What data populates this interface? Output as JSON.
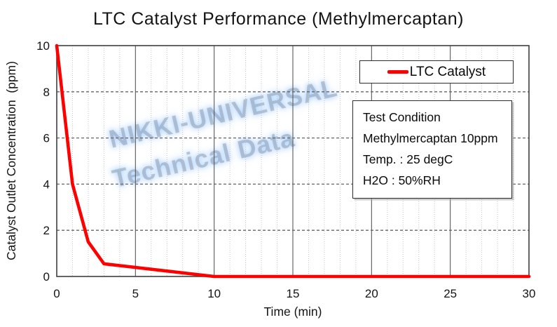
{
  "title": "LTC Catalyst Performance (Methylmercaptan)",
  "watermark": {
    "line1": "NIKKI-UNIVERSAL",
    "line2": "Technical Data"
  },
  "legend": {
    "label": "LTC Catalyst"
  },
  "test_condition": {
    "lines": [
      "Test Condition",
      "Methylmercaptan 10ppm",
      "Temp. : 25 degC",
      "H2O : 50%RH"
    ]
  },
  "chart_data": {
    "type": "line",
    "title": "LTC Catalyst Performance (Methylmercaptan)",
    "xlabel": "Time (min)",
    "ylabel": "Catalyst Outlet Concentration  (ppm)",
    "xlim": [
      0,
      30
    ],
    "ylim": [
      0,
      10
    ],
    "xticks": [
      0,
      5,
      10,
      15,
      20,
      25,
      30
    ],
    "yticks": [
      0,
      2,
      4,
      6,
      8,
      10
    ],
    "x_minor_step": 1,
    "grid": {
      "horizontal": "dashed",
      "vertical_major": "solid",
      "vertical_minor": "dotted"
    },
    "legend_position": "top-right-inside",
    "colors": {
      "line": "#ff0000",
      "h_grid": "#666666",
      "v_major_grid": "#595959",
      "v_minor_grid": "#c4c4c4",
      "border": "#3f3f3f",
      "tick_text": "#141414"
    },
    "series": [
      {
        "name": "LTC Catalyst",
        "color": "#ff0000",
        "points": [
          [
            0,
            10
          ],
          [
            1,
            4
          ],
          [
            2,
            1.5
          ],
          [
            3,
            0.55
          ],
          [
            10,
            0
          ],
          [
            15,
            0
          ],
          [
            20,
            0
          ],
          [
            25,
            0
          ],
          [
            30,
            0
          ]
        ]
      }
    ]
  }
}
